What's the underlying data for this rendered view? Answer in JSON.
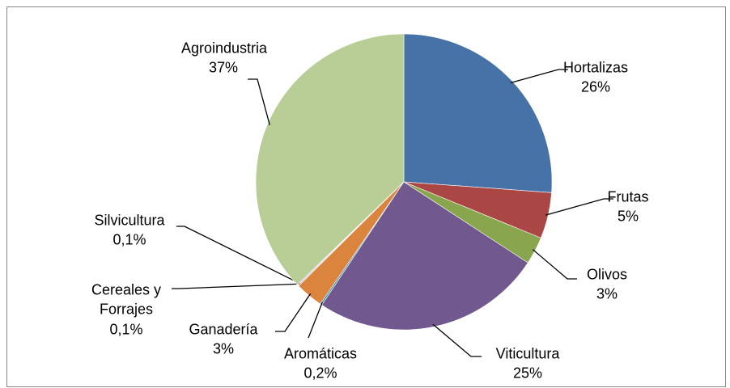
{
  "chart_data": {
    "type": "pie",
    "categories": [
      "Hortalizas",
      "Frutas",
      "Olivos",
      "Viticultura",
      "Aromáticas",
      "Ganadería",
      "Cereales y Forrajes",
      "Silvicultura",
      "Agroindustria"
    ],
    "values": [
      26,
      5,
      3,
      25,
      0.2,
      3,
      0.1,
      0.1,
      37
    ],
    "value_labels": [
      "26%",
      "5%",
      "3%",
      "25%",
      "0,2%",
      "3%",
      "0,1%",
      "0,1%",
      "37%"
    ],
    "colors": [
      "#4672A8",
      "#AA4643",
      "#89A54E",
      "#71588F",
      "#4198AF",
      "#DB843D",
      "#93A9CF",
      "#D19392",
      "#B9CD96"
    ]
  }
}
